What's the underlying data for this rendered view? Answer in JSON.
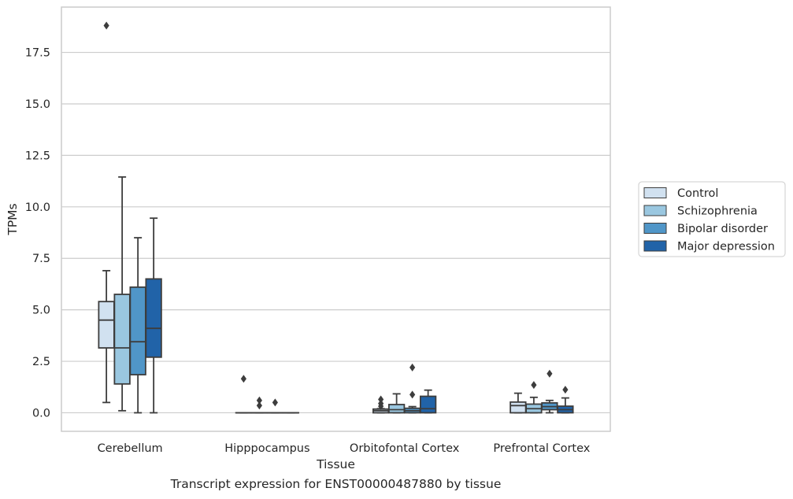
{
  "caption": "Transcript expression for ENST00000487880 by tissue",
  "colors": {
    "grid": "#cccccc",
    "frame": "#cccccc",
    "box_line": "#3d3d3d",
    "series": [
      "#d1e1f0",
      "#9ac7e0",
      "#5096c8",
      "#2163a8"
    ]
  },
  "chart_data": {
    "type": "box",
    "title": "",
    "xlabel": "Tissue",
    "ylabel": "TPMs",
    "ylim": [
      -0.9,
      19.7
    ],
    "yticks": [
      0.0,
      2.5,
      5.0,
      7.5,
      10.0,
      12.5,
      15.0,
      17.5
    ],
    "ytick_labels": [
      "0.0",
      "2.5",
      "5.0",
      "7.5",
      "10.0",
      "12.5",
      "15.0",
      "17.5"
    ],
    "grid": true,
    "legend_position": "right-center",
    "categories": [
      "Cerebellum",
      "Hipppocampus",
      "Orbitofontal Cortex",
      "Prefrontal Cortex"
    ],
    "series": [
      {
        "name": "Control",
        "boxes": [
          {
            "whislo": 0.5,
            "q1": 3.15,
            "med": 4.5,
            "q3": 5.4,
            "whishi": 6.9,
            "fliers": [
              18.8
            ]
          },
          {
            "whislo": 0.0,
            "q1": 0.0,
            "med": 0.0,
            "q3": 0.0,
            "whishi": 0.0,
            "fliers": [
              1.65
            ]
          },
          {
            "whislo": 0.0,
            "q1": 0.0,
            "med": 0.1,
            "q3": 0.18,
            "whishi": 0.2,
            "fliers": [
              0.32,
              0.45,
              0.65
            ]
          },
          {
            "whislo": 0.0,
            "q1": 0.0,
            "med": 0.35,
            "q3": 0.52,
            "whishi": 0.95,
            "fliers": []
          }
        ]
      },
      {
        "name": "Schizophrenia",
        "boxes": [
          {
            "whislo": 0.1,
            "q1": 1.4,
            "med": 3.15,
            "q3": 5.75,
            "whishi": 11.45,
            "fliers": []
          },
          {
            "whislo": 0.0,
            "q1": 0.0,
            "med": 0.0,
            "q3": 0.0,
            "whishi": 0.0,
            "fliers": [
              0.35,
              0.6
            ]
          },
          {
            "whislo": 0.0,
            "q1": 0.0,
            "med": 0.15,
            "q3": 0.4,
            "whishi": 0.92,
            "fliers": []
          },
          {
            "whislo": 0.0,
            "q1": 0.0,
            "med": 0.2,
            "q3": 0.42,
            "whishi": 0.75,
            "fliers": [
              1.35
            ]
          }
        ]
      },
      {
        "name": "Bipolar disorder",
        "boxes": [
          {
            "whislo": 0.0,
            "q1": 1.85,
            "med": 3.45,
            "q3": 6.1,
            "whishi": 8.5,
            "fliers": []
          },
          {
            "whislo": 0.0,
            "q1": 0.0,
            "med": 0.0,
            "q3": 0.0,
            "whishi": 0.0,
            "fliers": [
              0.5
            ]
          },
          {
            "whislo": 0.0,
            "q1": 0.0,
            "med": 0.1,
            "q3": 0.22,
            "whishi": 0.3,
            "fliers": [
              0.88,
              2.2
            ]
          },
          {
            "whislo": 0.0,
            "q1": 0.15,
            "med": 0.3,
            "q3": 0.48,
            "whishi": 0.6,
            "fliers": [
              1.9
            ]
          }
        ]
      },
      {
        "name": "Major depression",
        "boxes": [
          {
            "whislo": 0.0,
            "q1": 2.7,
            "med": 4.1,
            "q3": 6.5,
            "whishi": 9.45,
            "fliers": []
          },
          {
            "whislo": 0.0,
            "q1": 0.0,
            "med": 0.0,
            "q3": 0.0,
            "whishi": 0.0,
            "fliers": []
          },
          {
            "whislo": 0.0,
            "q1": 0.0,
            "med": 0.2,
            "q3": 0.8,
            "whishi": 1.1,
            "fliers": []
          },
          {
            "whislo": 0.0,
            "q1": 0.0,
            "med": 0.15,
            "q3": 0.32,
            "whishi": 0.72,
            "fliers": [
              1.12
            ]
          }
        ]
      }
    ]
  }
}
